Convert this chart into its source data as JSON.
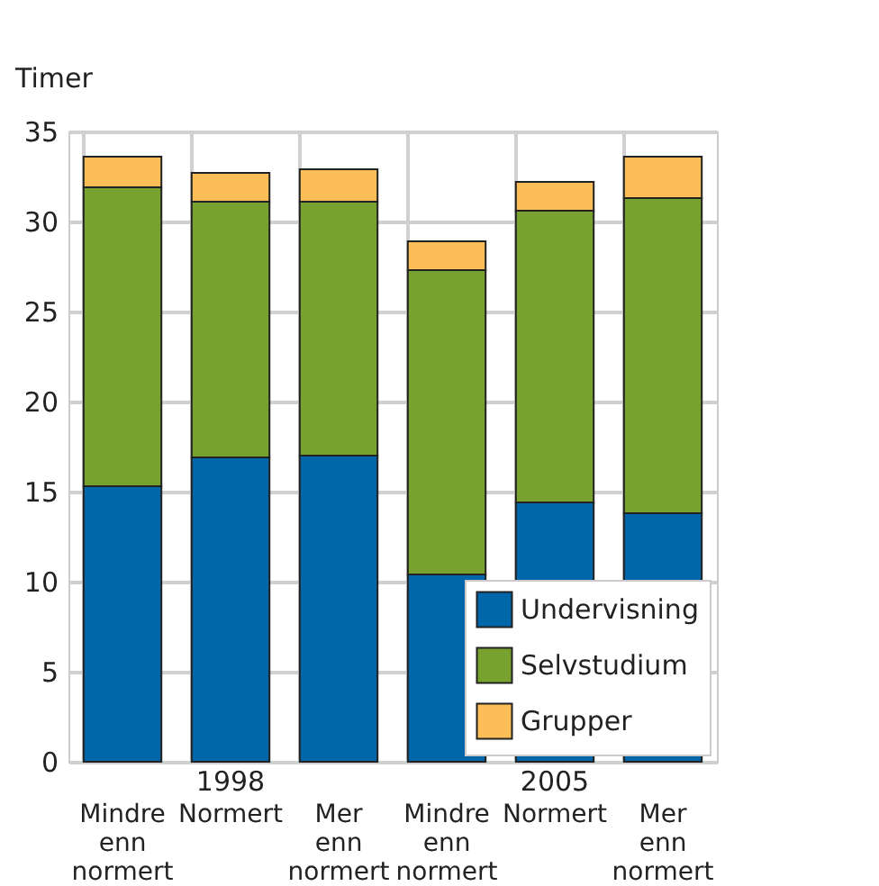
{
  "chart_data": {
    "type": "bar",
    "stacked": true,
    "ylabel": "Timer",
    "categories": [
      "Mindre enn normert",
      "Normert",
      "Mer enn normert",
      "Mindre enn normert",
      "Normert",
      "Mer enn normert"
    ],
    "series": [
      {
        "name": "Undervisning",
        "color": "#0066aa",
        "values": [
          15.3,
          16.9,
          17.0,
          10.4,
          14.4,
          13.8
        ]
      },
      {
        "name": "Selvstudium",
        "color": "#78a22f",
        "values": [
          16.6,
          14.2,
          14.1,
          16.9,
          16.2,
          17.5
        ]
      },
      {
        "name": "Grupper",
        "color": "#fdbd57",
        "values": [
          1.7,
          1.6,
          1.8,
          1.6,
          1.6,
          2.3
        ]
      }
    ],
    "annotations": [
      "1998",
      "2005"
    ],
    "ylim": [
      0,
      35
    ],
    "yticks": [
      0,
      5,
      10,
      15,
      20,
      25,
      30,
      35
    ],
    "grid": true,
    "legend": "bottom right"
  }
}
